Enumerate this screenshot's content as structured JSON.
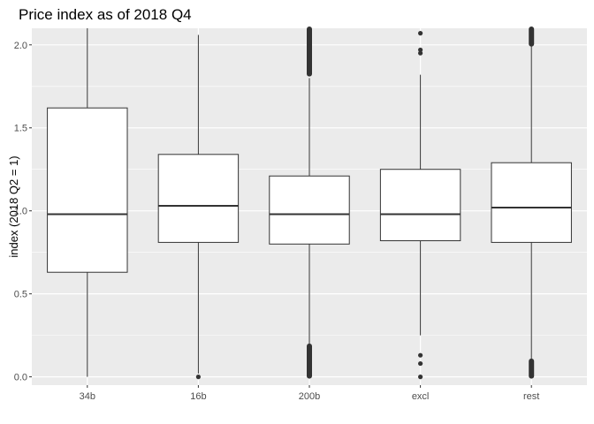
{
  "chart_data": {
    "type": "boxplot",
    "title": "Price index as of 2018 Q4",
    "xlabel": "",
    "ylabel": "index (2018 Q2 = 1)",
    "ylim": [
      -0.05,
      2.1
    ],
    "yticks": [
      0.0,
      0.5,
      1.0,
      1.5,
      2.0
    ],
    "ytick_labels": [
      "0.0",
      "0.5",
      "1.0",
      "1.5",
      "2.0"
    ],
    "grid": true,
    "categories": [
      "34b",
      "16b",
      "200b",
      "excl",
      "rest"
    ],
    "boxes": [
      {
        "category": "34b",
        "whisker_low": 0.0,
        "q1": 0.63,
        "median": 0.98,
        "q3": 1.62,
        "whisker_high": 2.1,
        "outliers": [],
        "outlier_bands": []
      },
      {
        "category": "16b",
        "whisker_low": 0.02,
        "q1": 0.81,
        "median": 1.03,
        "q3": 1.34,
        "whisker_high": 2.06,
        "outliers": [
          0.0
        ],
        "outlier_bands": []
      },
      {
        "category": "200b",
        "whisker_low": 0.2,
        "q1": 0.8,
        "median": 0.98,
        "q3": 1.21,
        "whisker_high": 1.8,
        "outliers": [],
        "outlier_bands": [
          [
            0.0,
            0.19
          ],
          [
            1.82,
            2.1
          ]
        ]
      },
      {
        "category": "excl",
        "whisker_low": 0.25,
        "q1": 0.82,
        "median": 0.98,
        "q3": 1.25,
        "whisker_high": 1.82,
        "outliers": [
          0.0,
          0.08,
          0.13,
          1.95,
          1.97,
          2.07
        ],
        "outlier_bands": []
      },
      {
        "category": "rest",
        "whisker_low": 0.1,
        "q1": 0.81,
        "median": 1.02,
        "q3": 1.29,
        "whisker_high": 2.0,
        "outliers": [],
        "outlier_bands": [
          [
            0.0,
            0.1
          ],
          [
            2.0,
            2.1
          ]
        ]
      }
    ],
    "colors": {
      "panel": "#ebebeb",
      "grid_major": "#ffffff",
      "box_fill": "#ffffff",
      "box_stroke": "#333333",
      "outlier": "#333333"
    }
  }
}
